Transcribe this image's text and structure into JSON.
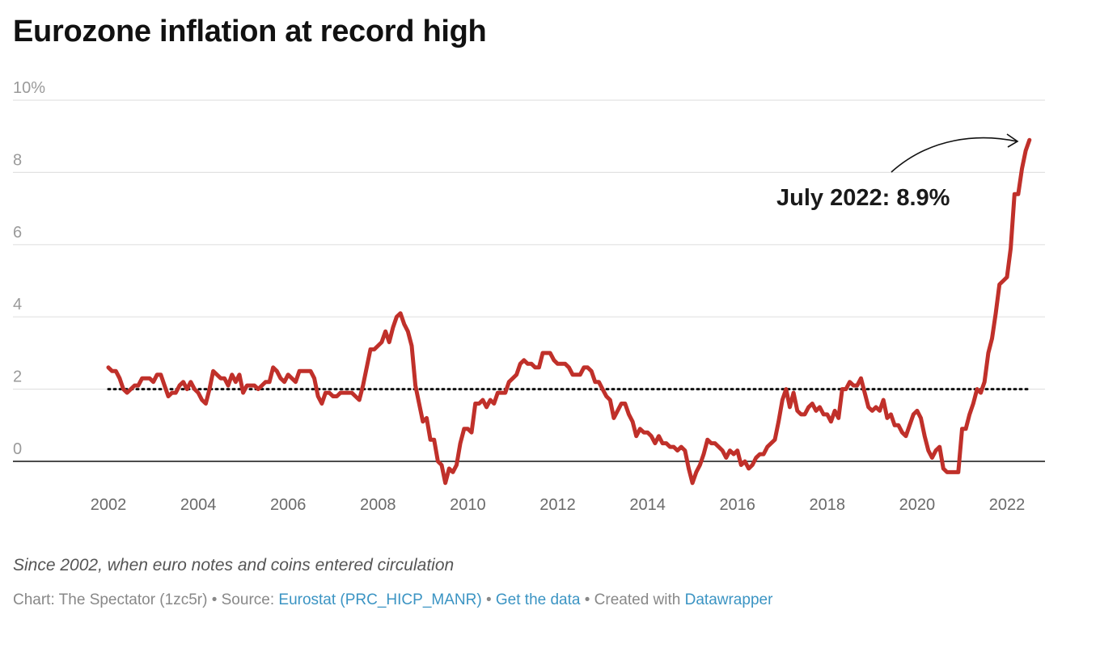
{
  "title": "Eurozone inflation at record high",
  "notes": "Since 2002, when euro notes and coins entered circulation",
  "credits": {
    "chart_by": "Chart: The Spectator (1zc5r)",
    "sep1": " • Source: ",
    "source_link": "Eurostat (PRC_HICP_MANR)",
    "sep2": " • ",
    "data_link": "Get the data",
    "sep3": " • Created with ",
    "tool_link": "Datawrapper"
  },
  "chart_data": {
    "type": "line",
    "title": "Eurozone inflation at record high",
    "ylim": [
      -1,
      10
    ],
    "xlim": [
      2000.3,
      2023.0
    ],
    "y_ticks": [
      0,
      2,
      4,
      6,
      8,
      10
    ],
    "y_tick_labels": [
      "0",
      "2",
      "4",
      "6",
      "8",
      "10%"
    ],
    "x_ticks": [
      2002,
      2004,
      2006,
      2008,
      2010,
      2012,
      2014,
      2016,
      2018,
      2020,
      2022
    ],
    "x_tick_labels": [
      "2002",
      "2004",
      "2006",
      "2008",
      "2010",
      "2012",
      "2014",
      "2016",
      "2018",
      "2020",
      "2022"
    ],
    "grid": true,
    "line_color": "#c0302a",
    "reference_line": {
      "y": 2,
      "style": "dotted"
    },
    "annotation": {
      "text": "July 2022: 8.9%",
      "x": "2022-07",
      "y": 8.9
    },
    "start": "2002-01",
    "frequency": "monthly",
    "values": [
      2.6,
      2.5,
      2.5,
      2.3,
      2.0,
      1.9,
      2.0,
      2.1,
      2.1,
      2.3,
      2.3,
      2.3,
      2.2,
      2.4,
      2.4,
      2.1,
      1.8,
      1.9,
      1.9,
      2.1,
      2.2,
      2.0,
      2.2,
      2.0,
      1.9,
      1.7,
      1.6,
      2.0,
      2.5,
      2.4,
      2.3,
      2.3,
      2.1,
      2.4,
      2.2,
      2.4,
      1.9,
      2.1,
      2.1,
      2.1,
      2.0,
      2.1,
      2.2,
      2.2,
      2.6,
      2.5,
      2.3,
      2.2,
      2.4,
      2.3,
      2.2,
      2.5,
      2.5,
      2.5,
      2.5,
      2.3,
      1.8,
      1.6,
      1.9,
      1.9,
      1.8,
      1.8,
      1.9,
      1.9,
      1.9,
      1.9,
      1.8,
      1.7,
      2.1,
      2.6,
      3.1,
      3.1,
      3.2,
      3.3,
      3.6,
      3.3,
      3.7,
      4.0,
      4.1,
      3.8,
      3.6,
      3.2,
      2.1,
      1.6,
      1.1,
      1.2,
      0.6,
      0.6,
      0.0,
      -0.1,
      -0.6,
      -0.2,
      -0.3,
      -0.1,
      0.5,
      0.9,
      0.9,
      0.8,
      1.6,
      1.6,
      1.7,
      1.5,
      1.7,
      1.6,
      1.9,
      1.9,
      1.9,
      2.2,
      2.3,
      2.4,
      2.7,
      2.8,
      2.7,
      2.7,
      2.6,
      2.6,
      3.0,
      3.0,
      3.0,
      2.8,
      2.7,
      2.7,
      2.7,
      2.6,
      2.4,
      2.4,
      2.4,
      2.6,
      2.6,
      2.5,
      2.2,
      2.2,
      2.0,
      1.8,
      1.7,
      1.2,
      1.4,
      1.6,
      1.6,
      1.3,
      1.1,
      0.7,
      0.9,
      0.8,
      0.8,
      0.7,
      0.5,
      0.7,
      0.5,
      0.5,
      0.4,
      0.4,
      0.3,
      0.4,
      0.3,
      -0.2,
      -0.6,
      -0.3,
      -0.1,
      0.2,
      0.6,
      0.5,
      0.5,
      0.4,
      0.3,
      0.1,
      0.3,
      0.2,
      0.3,
      -0.1,
      0.0,
      -0.2,
      -0.1,
      0.1,
      0.2,
      0.2,
      0.4,
      0.5,
      0.6,
      1.1,
      1.7,
      2.0,
      1.5,
      1.9,
      1.4,
      1.3,
      1.3,
      1.5,
      1.6,
      1.4,
      1.5,
      1.3,
      1.3,
      1.1,
      1.4,
      1.2,
      2.0,
      2.0,
      2.2,
      2.1,
      2.1,
      2.3,
      1.9,
      1.5,
      1.4,
      1.5,
      1.4,
      1.7,
      1.2,
      1.3,
      1.0,
      1.0,
      0.8,
      0.7,
      1.0,
      1.3,
      1.4,
      1.2,
      0.7,
      0.3,
      0.1,
      0.3,
      0.4,
      -0.2,
      -0.3,
      -0.3,
      -0.3,
      -0.3,
      0.9,
      0.9,
      1.3,
      1.6,
      2.0,
      1.9,
      2.2,
      3.0,
      3.4,
      4.1,
      4.9,
      5.0,
      5.1,
      5.9,
      7.4,
      7.4,
      8.1,
      8.6,
      8.9
    ]
  }
}
